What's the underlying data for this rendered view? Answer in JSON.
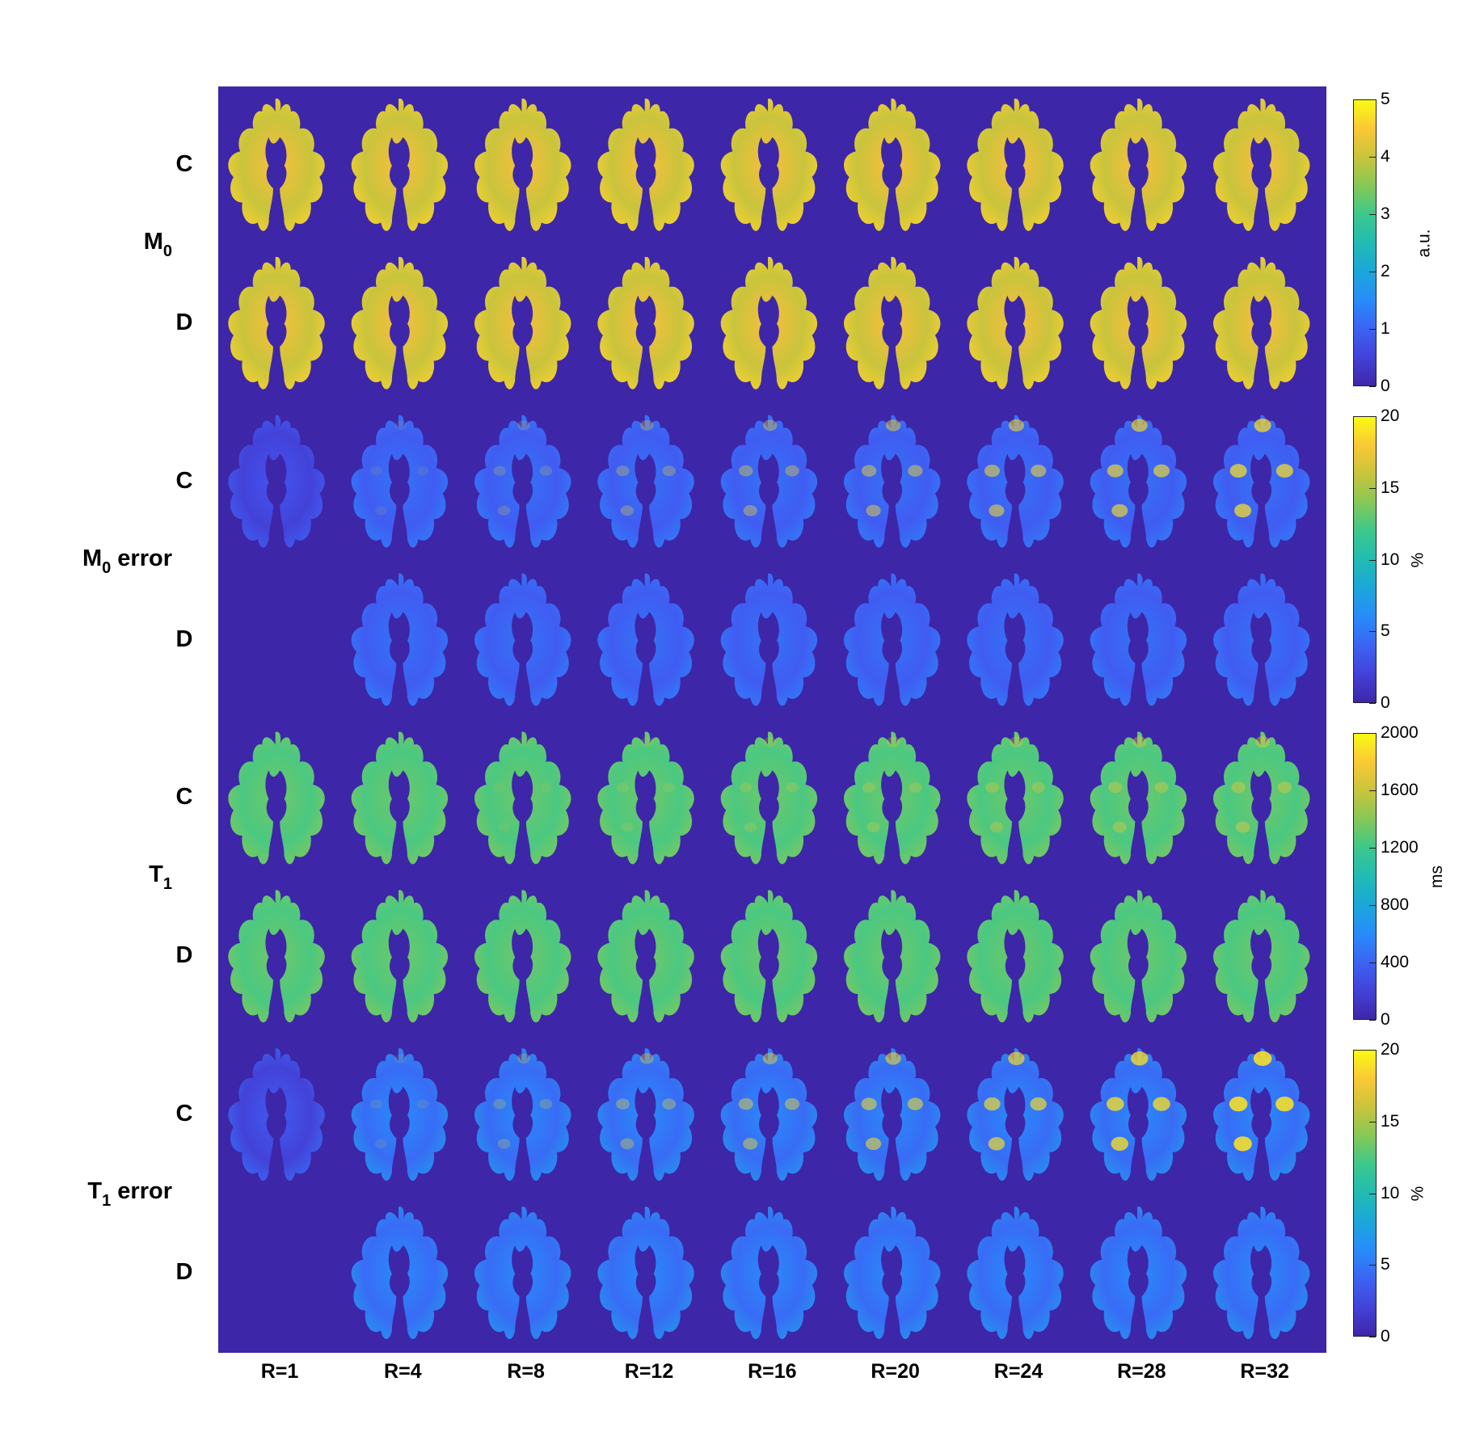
{
  "groups": [
    {
      "key": "m0",
      "label": "M",
      "sub": "0",
      "suffix": "",
      "rows": [
        "C",
        "D"
      ]
    },
    {
      "key": "m0err",
      "label": "M",
      "sub": "0",
      "suffix": " error",
      "rows": [
        "C",
        "D"
      ]
    },
    {
      "key": "t1",
      "label": "T",
      "sub": "1",
      "suffix": "",
      "rows": [
        "C",
        "D"
      ]
    },
    {
      "key": "t1err",
      "label": "T",
      "sub": "1",
      "suffix": " error",
      "rows": [
        "C",
        "D"
      ]
    }
  ],
  "columns": [
    "R=1",
    "R=4",
    "R=8",
    "R=12",
    "R=16",
    "R=20",
    "R=24",
    "R=28",
    "R=32"
  ],
  "colorbars": [
    {
      "unit": "a.u.",
      "ticks": [
        "0",
        "1",
        "2",
        "3",
        "4",
        "5"
      ]
    },
    {
      "unit": "%",
      "ticks": [
        "0",
        "5",
        "10",
        "15",
        "20"
      ]
    },
    {
      "unit": "ms",
      "ticks": [
        "0",
        "400",
        "800",
        "1200",
        "1600",
        "2000"
      ]
    },
    {
      "unit": "%",
      "ticks": [
        "0",
        "5",
        "10",
        "15",
        "20"
      ]
    }
  ],
  "colors": {
    "background": "#3e26a8",
    "colormap": "parula"
  }
}
